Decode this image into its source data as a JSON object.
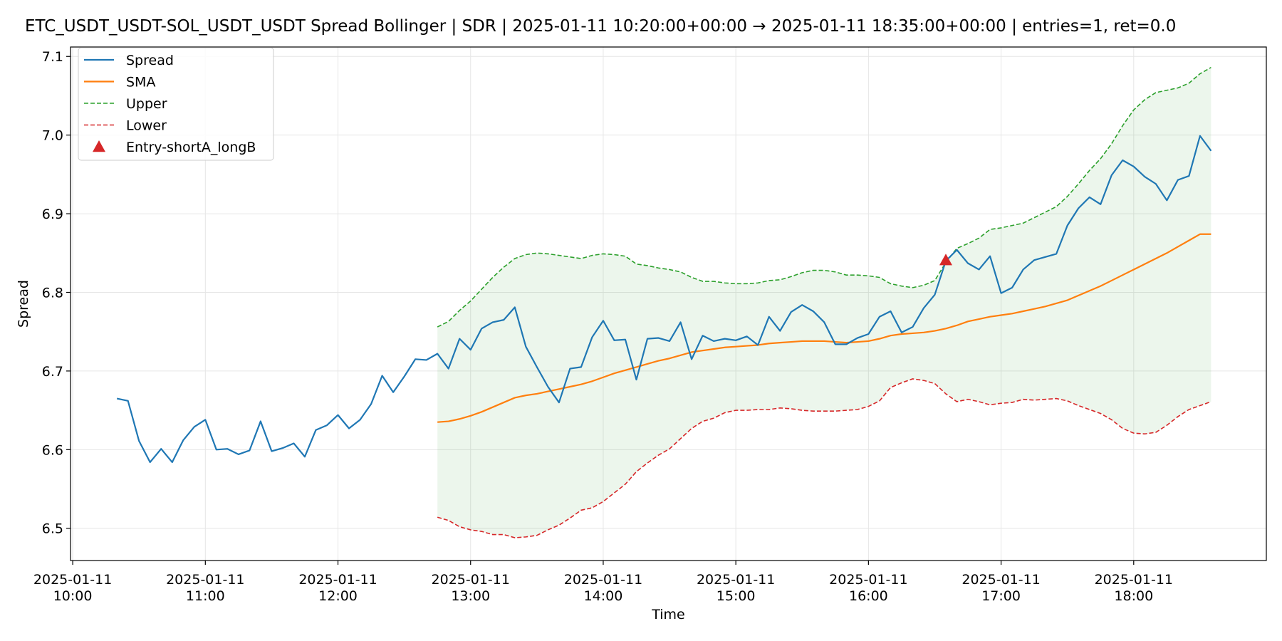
{
  "chart_data": {
    "type": "line",
    "title": "ETC_USDT_USDT-SOL_USDT_USDT Spread Bollinger  | SDR | 2025-01-11 10:20:00+00:00 → 2025-01-11 18:35:00+00:00 | entries=1, ret=0.0",
    "xlabel": "Time",
    "ylabel": "Spread",
    "xlim": [
      "2025-01-11 09:59",
      "2025-01-11 19:00"
    ],
    "ylim": [
      6.459,
      7.112
    ],
    "grid": true,
    "legend_position": "top-left",
    "x_ticks": [
      {
        "at": "2025-01-11 10:00",
        "date": "2025-01-11",
        "time": "10:00"
      },
      {
        "at": "2025-01-11 11:00",
        "date": "2025-01-11",
        "time": "11:00"
      },
      {
        "at": "2025-01-11 12:00",
        "date": "2025-01-11",
        "time": "12:00"
      },
      {
        "at": "2025-01-11 13:00",
        "date": "2025-01-11",
        "time": "13:00"
      },
      {
        "at": "2025-01-11 14:00",
        "date": "2025-01-11",
        "time": "14:00"
      },
      {
        "at": "2025-01-11 15:00",
        "date": "2025-01-11",
        "time": "15:00"
      },
      {
        "at": "2025-01-11 16:00",
        "date": "2025-01-11",
        "time": "16:00"
      },
      {
        "at": "2025-01-11 17:00",
        "date": "2025-01-11",
        "time": "17:00"
      },
      {
        "at": "2025-01-11 18:00",
        "date": "2025-01-11",
        "time": "18:00"
      }
    ],
    "y_ticks": [
      6.5,
      6.6,
      6.7,
      6.8,
      6.9,
      7.0,
      7.1
    ],
    "band_fill_color": "#2ca02c",
    "series": [
      {
        "name": "Spread",
        "color": "#1f77b4",
        "style": "solid",
        "x": [
          "2025-01-11 10:20",
          "2025-01-11 10:25",
          "2025-01-11 10:30",
          "2025-01-11 10:35",
          "2025-01-11 10:40",
          "2025-01-11 10:45",
          "2025-01-11 10:50",
          "2025-01-11 10:55",
          "2025-01-11 11:00",
          "2025-01-11 11:05",
          "2025-01-11 11:10",
          "2025-01-11 11:15",
          "2025-01-11 11:20",
          "2025-01-11 11:25",
          "2025-01-11 11:30",
          "2025-01-11 11:35",
          "2025-01-11 11:40",
          "2025-01-11 11:45",
          "2025-01-11 11:50",
          "2025-01-11 11:55",
          "2025-01-11 12:00",
          "2025-01-11 12:05",
          "2025-01-11 12:10",
          "2025-01-11 12:15",
          "2025-01-11 12:20",
          "2025-01-11 12:25",
          "2025-01-11 12:30",
          "2025-01-11 12:35",
          "2025-01-11 12:40",
          "2025-01-11 12:45",
          "2025-01-11 12:50",
          "2025-01-11 12:55",
          "2025-01-11 13:00",
          "2025-01-11 13:05",
          "2025-01-11 13:10",
          "2025-01-11 13:15",
          "2025-01-11 13:20",
          "2025-01-11 13:25",
          "2025-01-11 13:30",
          "2025-01-11 13:35",
          "2025-01-11 13:40",
          "2025-01-11 13:45",
          "2025-01-11 13:50",
          "2025-01-11 13:55",
          "2025-01-11 14:00",
          "2025-01-11 14:05",
          "2025-01-11 14:10",
          "2025-01-11 14:15",
          "2025-01-11 14:20",
          "2025-01-11 14:25",
          "2025-01-11 14:30",
          "2025-01-11 14:35",
          "2025-01-11 14:40",
          "2025-01-11 14:45",
          "2025-01-11 14:50",
          "2025-01-11 14:55",
          "2025-01-11 15:00",
          "2025-01-11 15:05",
          "2025-01-11 15:10",
          "2025-01-11 15:15",
          "2025-01-11 15:20",
          "2025-01-11 15:25",
          "2025-01-11 15:30",
          "2025-01-11 15:35",
          "2025-01-11 15:40",
          "2025-01-11 15:45",
          "2025-01-11 15:50",
          "2025-01-11 15:55",
          "2025-01-11 16:00",
          "2025-01-11 16:05",
          "2025-01-11 16:10",
          "2025-01-11 16:15",
          "2025-01-11 16:20",
          "2025-01-11 16:25",
          "2025-01-11 16:30",
          "2025-01-11 16:35",
          "2025-01-11 16:40",
          "2025-01-11 16:45",
          "2025-01-11 16:50",
          "2025-01-11 16:55",
          "2025-01-11 17:00",
          "2025-01-11 17:05",
          "2025-01-11 17:10",
          "2025-01-11 17:15",
          "2025-01-11 17:20",
          "2025-01-11 17:25",
          "2025-01-11 17:30",
          "2025-01-11 17:35",
          "2025-01-11 17:40",
          "2025-01-11 17:45",
          "2025-01-11 17:50",
          "2025-01-11 17:55",
          "2025-01-11 18:00",
          "2025-01-11 18:05",
          "2025-01-11 18:10",
          "2025-01-11 18:15",
          "2025-01-11 18:20",
          "2025-01-11 18:25",
          "2025-01-11 18:30",
          "2025-01-11 18:35"
        ],
        "values": [
          6.665,
          6.662,
          6.611,
          6.584,
          6.601,
          6.584,
          6.612,
          6.629,
          6.638,
          6.6,
          6.601,
          6.594,
          6.599,
          6.636,
          6.598,
          6.602,
          6.608,
          6.591,
          6.625,
          6.631,
          6.644,
          6.627,
          6.638,
          6.658,
          6.694,
          6.673,
          6.693,
          6.715,
          6.714,
          6.722,
          6.703,
          6.741,
          6.727,
          6.754,
          6.762,
          6.765,
          6.781,
          6.731,
          6.705,
          6.68,
          6.66,
          6.703,
          6.705,
          6.743,
          6.764,
          6.739,
          6.74,
          6.689,
          6.741,
          6.742,
          6.738,
          6.762,
          6.715,
          6.745,
          6.738,
          6.741,
          6.739,
          6.744,
          6.733,
          6.769,
          6.751,
          6.775,
          6.784,
          6.776,
          6.762,
          6.734,
          6.734,
          6.742,
          6.747,
          6.769,
          6.776,
          6.749,
          6.756,
          6.78,
          6.797,
          6.84,
          6.854,
          6.837,
          6.829,
          6.846,
          6.799,
          6.806,
          6.829,
          6.841,
          6.845,
          6.849,
          6.885,
          6.907,
          6.921,
          6.912,
          6.949,
          6.968,
          6.96,
          6.947,
          6.938,
          6.917,
          6.943,
          6.948,
          6.999,
          6.98
        ]
      },
      {
        "name": "SMA",
        "color": "#ff7f0e",
        "style": "solid",
        "x": [
          "2025-01-11 12:45",
          "2025-01-11 12:50",
          "2025-01-11 12:55",
          "2025-01-11 13:00",
          "2025-01-11 13:05",
          "2025-01-11 13:10",
          "2025-01-11 13:15",
          "2025-01-11 13:20",
          "2025-01-11 13:25",
          "2025-01-11 13:30",
          "2025-01-11 13:35",
          "2025-01-11 13:40",
          "2025-01-11 13:45",
          "2025-01-11 13:50",
          "2025-01-11 13:55",
          "2025-01-11 14:00",
          "2025-01-11 14:05",
          "2025-01-11 14:10",
          "2025-01-11 14:15",
          "2025-01-11 14:20",
          "2025-01-11 14:25",
          "2025-01-11 14:30",
          "2025-01-11 14:35",
          "2025-01-11 14:40",
          "2025-01-11 14:45",
          "2025-01-11 14:50",
          "2025-01-11 14:55",
          "2025-01-11 15:00",
          "2025-01-11 15:05",
          "2025-01-11 15:10",
          "2025-01-11 15:15",
          "2025-01-11 15:20",
          "2025-01-11 15:25",
          "2025-01-11 15:30",
          "2025-01-11 15:35",
          "2025-01-11 15:40",
          "2025-01-11 15:45",
          "2025-01-11 15:50",
          "2025-01-11 15:55",
          "2025-01-11 16:00",
          "2025-01-11 16:05",
          "2025-01-11 16:10",
          "2025-01-11 16:15",
          "2025-01-11 16:20",
          "2025-01-11 16:25",
          "2025-01-11 16:30",
          "2025-01-11 16:35",
          "2025-01-11 16:40",
          "2025-01-11 16:45",
          "2025-01-11 16:50",
          "2025-01-11 16:55",
          "2025-01-11 17:00",
          "2025-01-11 17:05",
          "2025-01-11 17:10",
          "2025-01-11 17:15",
          "2025-01-11 17:20",
          "2025-01-11 17:25",
          "2025-01-11 17:30",
          "2025-01-11 17:35",
          "2025-01-11 17:40",
          "2025-01-11 17:45",
          "2025-01-11 17:50",
          "2025-01-11 17:55",
          "2025-01-11 18:00",
          "2025-01-11 18:05",
          "2025-01-11 18:10",
          "2025-01-11 18:15",
          "2025-01-11 18:20",
          "2025-01-11 18:25",
          "2025-01-11 18:30",
          "2025-01-11 18:35"
        ],
        "values": [
          6.635,
          6.636,
          6.639,
          6.643,
          6.648,
          6.654,
          6.66,
          6.666,
          6.669,
          6.671,
          6.674,
          6.677,
          6.68,
          6.683,
          6.687,
          6.692,
          6.697,
          6.701,
          6.705,
          6.709,
          6.713,
          6.716,
          6.72,
          6.724,
          6.726,
          6.728,
          6.73,
          6.731,
          6.732,
          6.733,
          6.735,
          6.736,
          6.737,
          6.738,
          6.738,
          6.738,
          6.737,
          6.736,
          6.737,
          6.738,
          6.741,
          6.745,
          6.747,
          6.748,
          6.749,
          6.751,
          6.754,
          6.758,
          6.763,
          6.766,
          6.769,
          6.771,
          6.773,
          6.776,
          6.779,
          6.782,
          6.786,
          6.79,
          6.796,
          6.802,
          6.808,
          6.815,
          6.822,
          6.829,
          6.836,
          6.843,
          6.85,
          6.858,
          6.866,
          6.874,
          6.874
        ]
      },
      {
        "name": "Upper",
        "color": "#2ca02c",
        "style": "dashed",
        "x": [
          "2025-01-11 12:45",
          "2025-01-11 12:50",
          "2025-01-11 12:55",
          "2025-01-11 13:00",
          "2025-01-11 13:05",
          "2025-01-11 13:10",
          "2025-01-11 13:15",
          "2025-01-11 13:20",
          "2025-01-11 13:25",
          "2025-01-11 13:30",
          "2025-01-11 13:35",
          "2025-01-11 13:40",
          "2025-01-11 13:45",
          "2025-01-11 13:50",
          "2025-01-11 13:55",
          "2025-01-11 14:00",
          "2025-01-11 14:05",
          "2025-01-11 14:10",
          "2025-01-11 14:15",
          "2025-01-11 14:20",
          "2025-01-11 14:25",
          "2025-01-11 14:30",
          "2025-01-11 14:35",
          "2025-01-11 14:40",
          "2025-01-11 14:45",
          "2025-01-11 14:50",
          "2025-01-11 14:55",
          "2025-01-11 15:00",
          "2025-01-11 15:05",
          "2025-01-11 15:10",
          "2025-01-11 15:15",
          "2025-01-11 15:20",
          "2025-01-11 15:25",
          "2025-01-11 15:30",
          "2025-01-11 15:35",
          "2025-01-11 15:40",
          "2025-01-11 15:45",
          "2025-01-11 15:50",
          "2025-01-11 15:55",
          "2025-01-11 16:00",
          "2025-01-11 16:05",
          "2025-01-11 16:10",
          "2025-01-11 16:15",
          "2025-01-11 16:20",
          "2025-01-11 16:25",
          "2025-01-11 16:30",
          "2025-01-11 16:35",
          "2025-01-11 16:40",
          "2025-01-11 16:45",
          "2025-01-11 16:50",
          "2025-01-11 16:55",
          "2025-01-11 17:00",
          "2025-01-11 17:05",
          "2025-01-11 17:10",
          "2025-01-11 17:15",
          "2025-01-11 17:20",
          "2025-01-11 17:25",
          "2025-01-11 17:30",
          "2025-01-11 17:35",
          "2025-01-11 17:40",
          "2025-01-11 17:45",
          "2025-01-11 17:50",
          "2025-01-11 17:55",
          "2025-01-11 18:00",
          "2025-01-11 18:05",
          "2025-01-11 18:10",
          "2025-01-11 18:15",
          "2025-01-11 18:20",
          "2025-01-11 18:25",
          "2025-01-11 18:30",
          "2025-01-11 18:35"
        ],
        "values": [
          6.756,
          6.763,
          6.777,
          6.789,
          6.804,
          6.819,
          6.832,
          6.843,
          6.848,
          6.85,
          6.849,
          6.847,
          6.845,
          6.843,
          6.847,
          6.849,
          6.848,
          6.846,
          6.836,
          6.834,
          6.831,
          6.829,
          6.826,
          6.819,
          6.814,
          6.814,
          6.812,
          6.811,
          6.811,
          6.812,
          6.815,
          6.816,
          6.82,
          6.825,
          6.828,
          6.828,
          6.826,
          6.822,
          6.822,
          6.821,
          6.819,
          6.811,
          6.808,
          6.806,
          6.809,
          6.815,
          6.838,
          6.856,
          6.862,
          6.869,
          6.88,
          6.882,
          6.885,
          6.888,
          6.895,
          6.902,
          6.909,
          6.922,
          6.938,
          6.955,
          6.97,
          6.989,
          7.012,
          7.032,
          7.045,
          7.054,
          7.057,
          7.06,
          7.066,
          7.078,
          7.086
        ]
      },
      {
        "name": "Lower",
        "color": "#d62728",
        "style": "dashed",
        "x": [
          "2025-01-11 12:45",
          "2025-01-11 12:50",
          "2025-01-11 12:55",
          "2025-01-11 13:00",
          "2025-01-11 13:05",
          "2025-01-11 13:10",
          "2025-01-11 13:15",
          "2025-01-11 13:20",
          "2025-01-11 13:25",
          "2025-01-11 13:30",
          "2025-01-11 13:35",
          "2025-01-11 13:40",
          "2025-01-11 13:45",
          "2025-01-11 13:50",
          "2025-01-11 13:55",
          "2025-01-11 14:00",
          "2025-01-11 14:05",
          "2025-01-11 14:10",
          "2025-01-11 14:15",
          "2025-01-11 14:20",
          "2025-01-11 14:25",
          "2025-01-11 14:30",
          "2025-01-11 14:35",
          "2025-01-11 14:40",
          "2025-01-11 14:45",
          "2025-01-11 14:50",
          "2025-01-11 14:55",
          "2025-01-11 15:00",
          "2025-01-11 15:05",
          "2025-01-11 15:10",
          "2025-01-11 15:15",
          "2025-01-11 15:20",
          "2025-01-11 15:25",
          "2025-01-11 15:30",
          "2025-01-11 15:35",
          "2025-01-11 15:40",
          "2025-01-11 15:45",
          "2025-01-11 15:50",
          "2025-01-11 15:55",
          "2025-01-11 16:00",
          "2025-01-11 16:05",
          "2025-01-11 16:10",
          "2025-01-11 16:15",
          "2025-01-11 16:20",
          "2025-01-11 16:25",
          "2025-01-11 16:30",
          "2025-01-11 16:35",
          "2025-01-11 16:40",
          "2025-01-11 16:45",
          "2025-01-11 16:50",
          "2025-01-11 16:55",
          "2025-01-11 17:00",
          "2025-01-11 17:05",
          "2025-01-11 17:10",
          "2025-01-11 17:15",
          "2025-01-11 17:20",
          "2025-01-11 17:25",
          "2025-01-11 17:30",
          "2025-01-11 17:35",
          "2025-01-11 17:40",
          "2025-01-11 17:45",
          "2025-01-11 17:50",
          "2025-01-11 17:55",
          "2025-01-11 18:00",
          "2025-01-11 18:05",
          "2025-01-11 18:10",
          "2025-01-11 18:15",
          "2025-01-11 18:20",
          "2025-01-11 18:25",
          "2025-01-11 18:30",
          "2025-01-11 18:35"
        ],
        "values": [
          6.514,
          6.51,
          6.502,
          6.498,
          6.496,
          6.492,
          6.492,
          6.488,
          6.489,
          6.491,
          6.498,
          6.504,
          6.513,
          6.523,
          6.526,
          6.534,
          6.545,
          6.556,
          6.572,
          6.583,
          6.593,
          6.601,
          6.614,
          6.627,
          6.636,
          6.64,
          6.647,
          6.65,
          6.65,
          6.651,
          6.651,
          6.653,
          6.652,
          6.65,
          6.649,
          6.649,
          6.649,
          6.65,
          6.651,
          6.655,
          6.662,
          6.679,
          6.685,
          6.69,
          6.688,
          6.684,
          6.671,
          6.661,
          6.664,
          6.661,
          6.657,
          6.659,
          6.66,
          6.664,
          6.663,
          6.664,
          6.665,
          6.662,
          6.656,
          6.651,
          6.646,
          6.638,
          6.627,
          6.621,
          6.62,
          6.622,
          6.631,
          6.642,
          6.651,
          6.656,
          6.661
        ]
      }
    ],
    "markers": [
      {
        "name": "Entry-shortA_longB",
        "color": "#d62728",
        "shape": "triangle-up",
        "x": "2025-01-11 16:35",
        "y": 6.841
      }
    ]
  }
}
